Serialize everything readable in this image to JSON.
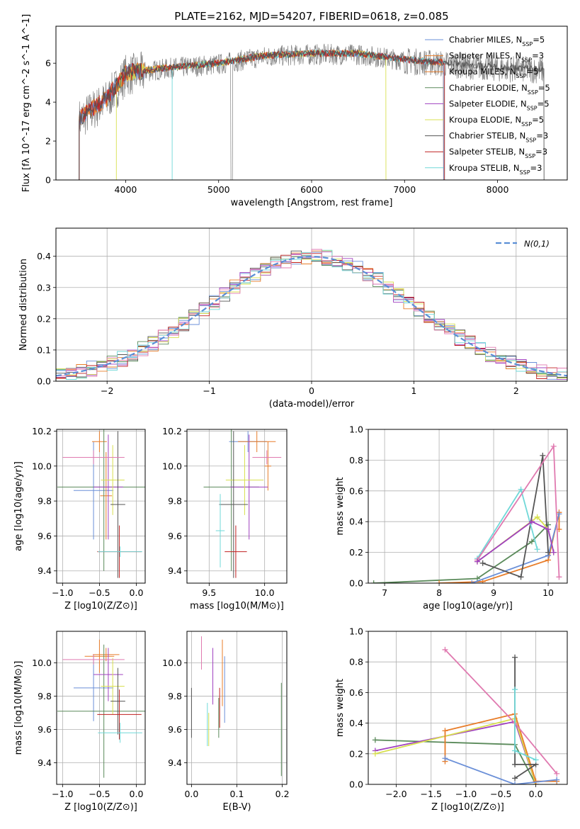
{
  "title": "PLATE=2162, MJD=54207, FIBERID=0618, z=0.085",
  "colors": {
    "Chabrier MILES": "#6a8fd8",
    "Salpeter MILES": "#e87d2a",
    "Kroupa MILES": "#e87d2a",
    "Chabrier ELODIE": "#5a8a5a",
    "Salpeter ELODIE": "#a040c0",
    "Kroupa ELODIE": "#d8e050",
    "Chabrier STELIB": "#555555",
    "Salpeter STELIB": "#c02020",
    "Kroupa STELIB": "#70d8d8",
    "pink": "#e07ab0",
    "data": "#808080",
    "normal": "#5b8fd6"
  },
  "legend_spectrum": [
    "Chabrier MILES, N_SSP=5",
    "Salpeter MILES, N_SSP=3",
    "Kroupa MILES, N_SSP=5",
    "Chabrier ELODIE, N_SSP=5",
    "Salpeter ELODIE, N_SSP=5",
    "Kroupa ELODIE, N_SSP=5",
    "Chabrier STELIB, N_SSP=3",
    "Salpeter STELIB, N_SSP=3",
    "Kroupa STELIB, N_SSP=3"
  ],
  "legend_hist": "N(0,1)",
  "chart_data": [
    {
      "id": "spectrum",
      "type": "line",
      "xlabel": "wavelength [Angstrom, rest frame]",
      "ylabel": "Flux [fλ 10^-17 erg cm^-2 s^-1 A^-1]",
      "xlim": [
        3250,
        8750
      ],
      "ylim": [
        0,
        7.9
      ],
      "xticks": [
        4000,
        5000,
        6000,
        7000,
        8000
      ],
      "yticks": [
        0,
        2,
        4,
        6
      ],
      "data_envelope": {
        "x": [
          3500,
          3800,
          4000,
          4500,
          5000,
          5500,
          6000,
          6500,
          7000,
          7500,
          8000,
          8500
        ],
        "y": [
          3.2,
          4.2,
          5.5,
          5.8,
          6.0,
          6.4,
          6.5,
          6.5,
          6.2,
          6.0,
          5.8,
          5.7
        ]
      }
    },
    {
      "id": "residual_hist",
      "type": "bar",
      "xlabel": "(data-model)/error",
      "ylabel": "Normed distribution",
      "xlim": [
        -2.5,
        2.5
      ],
      "ylim": [
        0,
        0.49
      ],
      "xticks": [
        -2,
        -1,
        0,
        1,
        2
      ],
      "yticks": [
        0.0,
        0.1,
        0.2,
        0.3,
        0.4
      ],
      "bin_width": 0.1
    },
    {
      "id": "age_vs_Z",
      "type": "scatter",
      "xlabel": "Z [log10(Z/Z⊙)]",
      "ylabel": "age [log10(age/yr)]",
      "xlim": [
        -1.08,
        0.12
      ],
      "ylim": [
        9.33,
        10.21
      ],
      "xticks": [
        -1.0,
        -0.5,
        0.0
      ],
      "yticks": [
        9.4,
        9.6,
        9.8,
        10.0,
        10.2
      ],
      "points": [
        {
          "c": "Chabrier MILES",
          "x": -0.58,
          "xerr": 0.27,
          "y": 9.86,
          "yerr": 0.28
        },
        {
          "c": "Salpeter MILES",
          "x": -0.5,
          "xerr": 0.1,
          "y": 10.14,
          "yerr": 0.06
        },
        {
          "c": "Kroupa MILES",
          "x": -0.41,
          "xerr": 0.08,
          "y": 9.83,
          "yerr": 0.25
        },
        {
          "c": "Chabrier ELODIE",
          "x": -0.44,
          "xerr": 0.63,
          "y": 9.88,
          "yerr": 0.48
        },
        {
          "c": "Salpeter ELODIE",
          "x": -0.38,
          "xerr": 0.2,
          "y": 9.88,
          "yerr": 0.3
        },
        {
          "c": "Kroupa ELODIE",
          "x": -0.32,
          "xerr": 0.16,
          "y": 9.92,
          "yerr": 0.2
        },
        {
          "c": "Chabrier STELIB",
          "x": -0.25,
          "xerr": 0.1,
          "y": 9.78,
          "yerr": 0.42
        },
        {
          "c": "Salpeter STELIB",
          "x": -0.23,
          "xerr": 0.3,
          "y": 9.51,
          "yerr": 0.15
        },
        {
          "c": "Kroupa STELIB",
          "x": -0.22,
          "xerr": 0.3,
          "y": 9.51,
          "yerr": 0.03
        },
        {
          "c": "pink",
          "x": -0.58,
          "xerr": 0.42,
          "y": 10.05,
          "yerr": 0.04
        }
      ]
    },
    {
      "id": "age_vs_mass",
      "type": "scatter",
      "xlabel": "mass [log10(M/M⊙)]",
      "ylabel": "",
      "xlim": [
        9.3,
        10.2
      ],
      "ylim": [
        9.33,
        10.21
      ],
      "xticks": [
        9.5,
        10.0
      ],
      "yticks": [
        9.4,
        9.6,
        9.8,
        10.0,
        10.2
      ],
      "points": [
        {
          "c": "Chabrier MILES",
          "x": 9.85,
          "xerr": 0.17,
          "y": 10.14,
          "yerr": 0.06
        },
        {
          "c": "Salpeter MILES",
          "x": 9.93,
          "xerr": 0.17,
          "y": 10.14,
          "yerr": 0.06
        },
        {
          "c": "Kroupa MILES",
          "x": 10.03,
          "xerr": 0.03,
          "y": 10.0,
          "yerr": 0.14
        },
        {
          "c": "Chabrier ELODIE",
          "x": 9.7,
          "xerr": 0.25,
          "y": 9.88,
          "yerr": 0.48
        },
        {
          "c": "Salpeter ELODIE",
          "x": 9.86,
          "xerr": 0.17,
          "y": 9.88,
          "yerr": 0.3
        },
        {
          "c": "Kroupa ELODIE",
          "x": 9.82,
          "xerr": 0.17,
          "y": 9.92,
          "yerr": 0.2
        },
        {
          "c": "Chabrier STELIB",
          "x": 9.72,
          "xerr": 0.13,
          "y": 9.78,
          "yerr": 0.42
        },
        {
          "c": "Salpeter STELIB",
          "x": 9.74,
          "xerr": 0.1,
          "y": 9.51,
          "yerr": 0.15
        },
        {
          "c": "Kroupa STELIB",
          "x": 9.6,
          "xerr": 0.04,
          "y": 9.63,
          "yerr": 0.21
        },
        {
          "c": "pink",
          "x": 10.02,
          "xerr": 0.13,
          "y": 10.05,
          "yerr": 0.04
        }
      ]
    },
    {
      "id": "weight_vs_age",
      "type": "line",
      "xlabel": "age [log10(age/yr)]",
      "ylabel": "mass weight",
      "xlim": [
        6.7,
        10.35
      ],
      "ylim": [
        0,
        1.0
      ],
      "xticks": [
        7,
        8,
        9,
        10
      ],
      "yticks": [
        0.0,
        0.2,
        0.4,
        0.6,
        0.8,
        1.0
      ],
      "series": [
        {
          "c": "Chabrier ELODIE",
          "x": [
            6.8,
            8.7,
            9.7,
            10.0
          ],
          "y": [
            0.0,
            0.03,
            0.27,
            0.38
          ]
        },
        {
          "c": "Salpeter MILES",
          "x": [
            8.0,
            8.8,
            10.0,
            10.2,
            10.2
          ],
          "y": [
            0.0,
            0.01,
            0.15,
            0.46,
            0.35
          ]
        },
        {
          "c": "Chabrier MILES",
          "x": [
            8.6,
            10.0,
            10.2
          ],
          "y": [
            0.0,
            0.18,
            0.45
          ]
        },
        {
          "c": "Chabrier STELIB",
          "x": [
            8.8,
            9.5,
            9.9,
            10.0
          ],
          "y": [
            0.13,
            0.04,
            0.83,
            0.2
          ]
        },
        {
          "c": "Kroupa STELIB",
          "x": [
            8.7,
            9.5,
            9.8
          ],
          "y": [
            0.16,
            0.61,
            0.22
          ]
        },
        {
          "c": "pink",
          "x": [
            8.7,
            10.1,
            10.2
          ],
          "y": [
            0.15,
            0.89,
            0.04
          ]
        },
        {
          "c": "Kroupa ELODIE",
          "x": [
            8.7,
            9.8,
            10.0,
            10.1
          ],
          "y": [
            0.14,
            0.43,
            0.35,
            0.2
          ]
        },
        {
          "c": "Salpeter ELODIE",
          "x": [
            8.7,
            9.7,
            10.0,
            10.1
          ],
          "y": [
            0.14,
            0.4,
            0.35,
            0.2
          ]
        }
      ]
    },
    {
      "id": "mass_vs_Z",
      "type": "scatter",
      "xlabel": "Z [log10(Z/Z⊙)]",
      "ylabel": "mass [log10(M/M⊙)]",
      "xlim": [
        -1.08,
        0.12
      ],
      "ylim": [
        9.27,
        10.19
      ],
      "xticks": [
        -1.0,
        -0.5,
        0.0
      ],
      "yticks": [
        9.4,
        9.6,
        9.8,
        10.0
      ],
      "points": [
        {
          "c": "Chabrier MILES",
          "x": -0.58,
          "xerr": 0.27,
          "y": 9.85,
          "yerr": 0.2
        },
        {
          "c": "Salpeter MILES",
          "x": -0.5,
          "xerr": 0.2,
          "y": 10.04,
          "yerr": 0.1
        },
        {
          "c": "Kroupa MILES",
          "x": -0.41,
          "xerr": 0.18,
          "y": 10.05,
          "yerr": 0.04
        },
        {
          "c": "Chabrier ELODIE",
          "x": -0.44,
          "xerr": 0.63,
          "y": 9.71,
          "yerr": 0.4
        },
        {
          "c": "Salpeter ELODIE",
          "x": -0.38,
          "xerr": 0.2,
          "y": 9.93,
          "yerr": 0.16
        },
        {
          "c": "Kroupa ELODIE",
          "x": -0.32,
          "xerr": 0.16,
          "y": 9.86,
          "yerr": 0.17
        },
        {
          "c": "Chabrier STELIB",
          "x": -0.25,
          "xerr": 0.1,
          "y": 9.77,
          "yerr": 0.2
        },
        {
          "c": "Salpeter STELIB",
          "x": -0.23,
          "xerr": 0.3,
          "y": 9.69,
          "yerr": 0.15
        },
        {
          "c": "Kroupa STELIB",
          "x": -0.22,
          "xerr": 0.3,
          "y": 9.58,
          "yerr": 0.06
        },
        {
          "c": "pink",
          "x": -0.58,
          "xerr": 0.42,
          "y": 10.02,
          "yerr": 0.03
        }
      ]
    },
    {
      "id": "mass_vs_EBV",
      "type": "scatter",
      "xlabel": "E(B-V)",
      "ylabel": "",
      "xlim": [
        -0.01,
        0.21
      ],
      "ylim": [
        9.27,
        10.19
      ],
      "xticks": [
        0.0,
        0.1,
        0.2
      ],
      "yticks": [
        9.4,
        9.6,
        9.8,
        10.0
      ],
      "points": [
        {
          "c": "Chabrier STELIB",
          "x": 0.0,
          "y": 9.7,
          "yerr": 0.15
        },
        {
          "c": "Kroupa STELIB",
          "x": 0.035,
          "y": 9.63,
          "yerr": 0.13
        },
        {
          "c": "Kroupa ELODIE",
          "x": 0.038,
          "y": 9.6,
          "yerr": 0.1
        },
        {
          "c": "pink",
          "x": 0.022,
          "y": 10.06,
          "yerr": 0.1
        },
        {
          "c": "Salpeter ELODIE",
          "x": 0.047,
          "y": 9.92,
          "yerr": 0.17
        },
        {
          "c": "Chabrier ELODIE",
          "x": 0.06,
          "y": 9.67,
          "yerr": 0.12
        },
        {
          "c": "Salpeter STELIB",
          "x": 0.062,
          "y": 9.73,
          "yerr": 0.12
        },
        {
          "c": "Kroupa MILES",
          "x": 0.068,
          "y": 9.94,
          "yerr": 0.2
        },
        {
          "c": "Chabrier MILES",
          "x": 0.073,
          "y": 9.84,
          "yerr": 0.2
        },
        {
          "c": "Chabrier ELODIE",
          "x": 0.198,
          "y": 9.6,
          "yerr": 0.28
        }
      ]
    },
    {
      "id": "weight_vs_Z",
      "type": "line",
      "xlabel": "Z [log10(Z/Z⊙)]",
      "ylabel": "mass weight",
      "xlim": [
        -2.4,
        0.45
      ],
      "ylim": [
        0,
        1.0
      ],
      "xticks": [
        -2.0,
        -1.5,
        -1.0,
        -0.5,
        0.0
      ],
      "yticks": [
        0.0,
        0.2,
        0.4,
        0.6,
        0.8,
        1.0
      ],
      "series": [
        {
          "c": "Chabrier ELODIE",
          "x": [
            -2.3,
            -0.3,
            0.0
          ],
          "y": [
            0.29,
            0.26,
            0.0
          ]
        },
        {
          "c": "Salpeter ELODIE",
          "x": [
            -2.3,
            -0.3,
            0.0
          ],
          "y": [
            0.22,
            0.41,
            0.0
          ]
        },
        {
          "c": "Kroupa ELODIE",
          "x": [
            -2.3,
            -0.3,
            0.0
          ],
          "y": [
            0.2,
            0.43,
            0.0
          ]
        },
        {
          "c": "Salpeter MILES",
          "x": [
            -1.3,
            -1.3,
            -0.3,
            0.0,
            0.3
          ],
          "y": [
            0.15,
            0.35,
            0.46,
            0.02,
            0.02
          ]
        },
        {
          "c": "Chabrier MILES",
          "x": [
            -1.3,
            -0.3,
            0.3
          ],
          "y": [
            0.17,
            0.0,
            0.03
          ]
        },
        {
          "c": "pink",
          "x": [
            -1.3,
            -0.3,
            0.3
          ],
          "y": [
            0.88,
            0.4,
            0.07
          ]
        },
        {
          "c": "Chabrier STELIB",
          "x": [
            -0.3,
            -0.3,
            0.0,
            -0.3
          ],
          "y": [
            0.83,
            0.13,
            0.13,
            0.04
          ]
        },
        {
          "c": "Kroupa STELIB",
          "x": [
            -0.3,
            -0.3,
            0.0
          ],
          "y": [
            0.62,
            0.22,
            0.16
          ]
        }
      ]
    }
  ]
}
